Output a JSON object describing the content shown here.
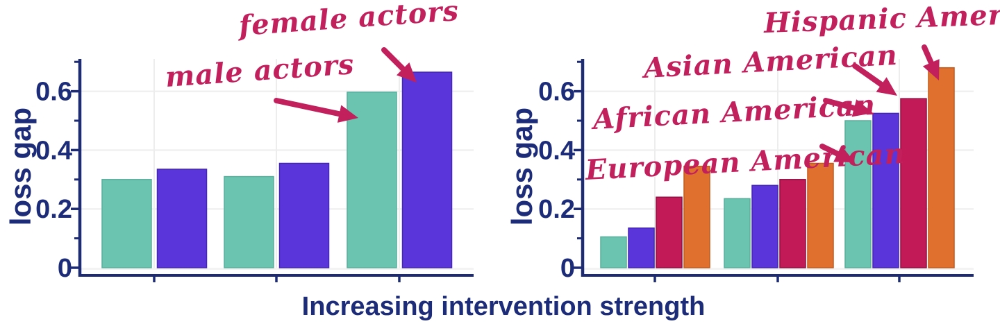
{
  "figure": {
    "background": "#FFFFFF",
    "xaxis_title": "Increasing intervention strength"
  },
  "colors": {
    "teal": "#6AC4B0",
    "purple": "#5A35DA",
    "crimson": "#C21A56",
    "orange": "#E0702D",
    "teal_edge": "#57AF9C",
    "purple_edge": "#4426B4",
    "crimson_edge": "#930F41",
    "orange_edge": "#C25A1E",
    "annotation_red": "#C2205C",
    "navy_text": "#1D2C78",
    "axis_line": "#1C2B74",
    "gridline": "#EDEDED",
    "zero_gridline": "#F3F3F3"
  },
  "chart_data": [
    {
      "type": "bar",
      "panel": "left",
      "ylabel": "loss gap",
      "ylim": [
        0,
        0.71
      ],
      "grid": true,
      "x_tick_labels_visible": false,
      "yticks": [
        {
          "label": "0",
          "value": 0
        },
        {
          "label": "0.2",
          "value": 0.2
        },
        {
          "label": "0.4",
          "value": 0.4
        },
        {
          "label": "0.6",
          "value": 0.6
        }
      ],
      "groups": 3,
      "series": [
        {
          "name": "male actors",
          "color": "teal",
          "values": [
            0.3,
            0.31,
            0.597
          ]
        },
        {
          "name": "female actors",
          "color": "purple",
          "values": [
            0.335,
            0.355,
            0.665
          ]
        }
      ],
      "annotations": [
        {
          "text": "male actors",
          "points_to": "teal bar, strongest intervention group"
        },
        {
          "text": "female actors",
          "points_to": "purple bar, strongest intervention group"
        }
      ]
    },
    {
      "type": "bar",
      "panel": "right",
      "ylabel": "loss gap",
      "ylim": [
        0,
        0.71
      ],
      "grid": true,
      "x_tick_labels_visible": false,
      "yticks": [
        {
          "label": "0",
          "value": 0
        },
        {
          "label": "0.2",
          "value": 0.2
        },
        {
          "label": "0.4",
          "value": 0.4
        },
        {
          "label": "0.6",
          "value": 0.6
        }
      ],
      "groups": 3,
      "series": [
        {
          "name": "European American",
          "color": "teal",
          "values": [
            0.105,
            0.235,
            0.5
          ]
        },
        {
          "name": "African American",
          "color": "purple",
          "values": [
            0.135,
            0.28,
            0.525
          ]
        },
        {
          "name": "Asian American",
          "color": "crimson",
          "values": [
            0.24,
            0.3,
            0.575
          ]
        },
        {
          "name": "Hispanic American",
          "color": "orange",
          "values": [
            0.345,
            0.355,
            0.68
          ]
        }
      ],
      "annotations": [
        {
          "text": "European American",
          "points_to": "teal bar, strongest intervention group"
        },
        {
          "text": "African American",
          "points_to": "purple bar, strongest intervention group"
        },
        {
          "text": "Asian American",
          "points_to": "crimson bar, strongest intervention group"
        },
        {
          "text": "Hispanic American",
          "points_to": "orange bar, strongest intervention group"
        }
      ]
    }
  ]
}
